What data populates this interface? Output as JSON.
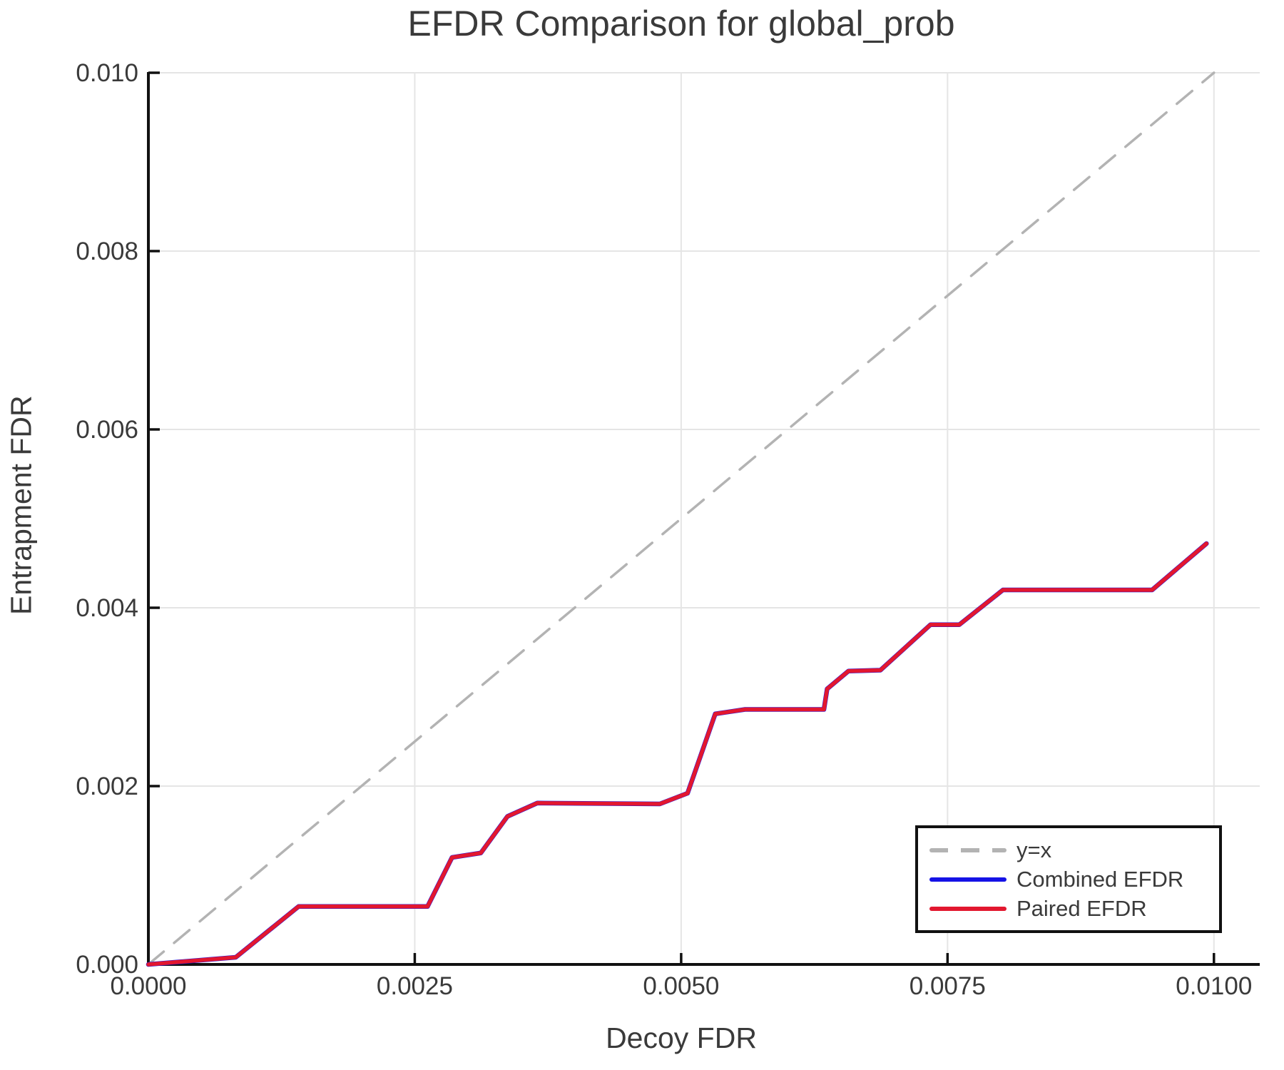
{
  "title": "EFDR Comparison for global_prob",
  "colors": {
    "axis": "#111111",
    "grid": "#E5E5E5",
    "text": "#3A3A3A",
    "identity_line": "#B3B3B3",
    "combined": "#1512E6",
    "paired": "#E2172F",
    "background": "#FFFFFF"
  },
  "legend": {
    "entries": [
      {
        "label": "y=x",
        "color": "#B3B3B3",
        "dash": true
      },
      {
        "label": "Combined EFDR",
        "color": "#1512E6",
        "dash": false
      },
      {
        "label": "Paired EFDR",
        "color": "#E2172F",
        "dash": false
      }
    ],
    "position": "lower right"
  },
  "chart_data": {
    "type": "line",
    "title": "EFDR Comparison for global_prob",
    "xlabel": "Decoy FDR",
    "ylabel": "Entrapment FDR",
    "xlim": [
      0.0,
      0.01043
    ],
    "ylim": [
      0.0,
      0.010008
    ],
    "grid": true,
    "legend_position": "lower right",
    "xticks": {
      "values": [
        0.0,
        0.0025,
        0.005,
        0.0075,
        0.01
      ],
      "labels": [
        "0.0000",
        "0.0025",
        "0.0050",
        "0.0075",
        "0.0100"
      ]
    },
    "yticks": {
      "values": [
        0.0,
        0.002,
        0.004,
        0.006,
        0.008,
        0.01
      ],
      "labels": [
        "0.000",
        "0.002",
        "0.004",
        "0.006",
        "0.008",
        "0.010"
      ]
    },
    "series": [
      {
        "name": "y=x",
        "style": "dashed",
        "color": "#B3B3B3",
        "width": 3.5,
        "points": [
          [
            0.0,
            0.0
          ],
          [
            0.01,
            0.01
          ]
        ]
      },
      {
        "name": "Combined EFDR",
        "style": "solid",
        "color": "#1512E6",
        "width": 6.5,
        "points": [
          [
            0.0,
            0.0
          ],
          [
            0.00082,
            8e-05
          ],
          [
            0.00141,
            0.00065
          ],
          [
            0.00262,
            0.00065
          ],
          [
            0.00285,
            0.0012
          ],
          [
            0.00312,
            0.00125
          ],
          [
            0.00337,
            0.00166
          ],
          [
            0.00365,
            0.00181
          ],
          [
            0.0048,
            0.0018
          ],
          [
            0.00506,
            0.00192
          ],
          [
            0.00532,
            0.00281
          ],
          [
            0.0056,
            0.00286
          ],
          [
            0.00634,
            0.00286
          ],
          [
            0.00637,
            0.00309
          ],
          [
            0.00657,
            0.00329
          ],
          [
            0.00687,
            0.0033
          ],
          [
            0.00734,
            0.00381
          ],
          [
            0.00761,
            0.00381
          ],
          [
            0.00802,
            0.0042
          ],
          [
            0.00942,
            0.0042
          ],
          [
            0.00993,
            0.00472
          ]
        ]
      },
      {
        "name": "Paired EFDR",
        "style": "solid",
        "color": "#E2172F",
        "width": 5.5,
        "points": [
          [
            0.0,
            0.0
          ],
          [
            0.00082,
            8e-05
          ],
          [
            0.00141,
            0.00065
          ],
          [
            0.00262,
            0.00065
          ],
          [
            0.00285,
            0.0012
          ],
          [
            0.00312,
            0.00125
          ],
          [
            0.00337,
            0.00166
          ],
          [
            0.00365,
            0.00181
          ],
          [
            0.0048,
            0.0018
          ],
          [
            0.00506,
            0.00192
          ],
          [
            0.00532,
            0.00281
          ],
          [
            0.0056,
            0.00286
          ],
          [
            0.00634,
            0.00286
          ],
          [
            0.00637,
            0.00309
          ],
          [
            0.00657,
            0.00329
          ],
          [
            0.00687,
            0.0033
          ],
          [
            0.00734,
            0.00381
          ],
          [
            0.00761,
            0.00381
          ],
          [
            0.00802,
            0.0042
          ],
          [
            0.00942,
            0.0042
          ],
          [
            0.00993,
            0.00472
          ]
        ]
      }
    ]
  }
}
